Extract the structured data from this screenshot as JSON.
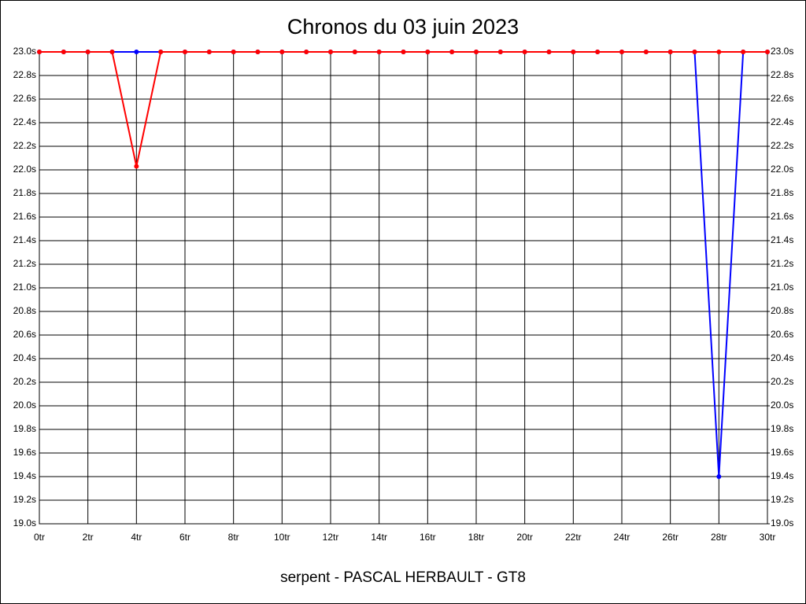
{
  "chart_data": {
    "type": "line",
    "title": "Chronos du 03 juin 2023",
    "subtitle": "serpent - PASCAL HERBAULT - GT8",
    "x": [
      0,
      1,
      2,
      3,
      4,
      5,
      6,
      7,
      8,
      9,
      10,
      11,
      12,
      13,
      14,
      15,
      16,
      17,
      18,
      19,
      20,
      21,
      22,
      23,
      24,
      25,
      26,
      27,
      28,
      29,
      30
    ],
    "series": [
      {
        "name": "rouge",
        "color": "#ff0000",
        "values": [
          23.0,
          23.0,
          23.0,
          23.0,
          22.03,
          23.0,
          23.0,
          23.0,
          23.0,
          23.0,
          23.0,
          23.0,
          23.0,
          23.0,
          23.0,
          23.0,
          23.0,
          23.0,
          23.0,
          23.0,
          23.0,
          23.0,
          23.0,
          23.0,
          23.0,
          23.0,
          23.0,
          23.0,
          23.0,
          23.0,
          23.0
        ]
      },
      {
        "name": "bleu",
        "color": "#0000ff",
        "values": [
          23.0,
          23.0,
          23.0,
          23.0,
          23.0,
          23.0,
          23.0,
          23.0,
          23.0,
          23.0,
          23.0,
          23.0,
          23.0,
          23.0,
          23.0,
          23.0,
          23.0,
          23.0,
          23.0,
          23.0,
          23.0,
          23.0,
          23.0,
          23.0,
          23.0,
          23.0,
          23.0,
          23.0,
          19.4,
          23.0,
          23.0
        ],
        "axis": "y2"
      }
    ],
    "xlim": [
      0,
      30
    ],
    "xticks": [
      {
        "value": 0,
        "label": "0tr"
      },
      {
        "value": 2,
        "label": "2tr"
      },
      {
        "value": 4,
        "label": "4tr"
      },
      {
        "value": 6,
        "label": "6tr"
      },
      {
        "value": 8,
        "label": "8tr"
      },
      {
        "value": 10,
        "label": "10tr"
      },
      {
        "value": 12,
        "label": "12tr"
      },
      {
        "value": 14,
        "label": "14tr"
      },
      {
        "value": 16,
        "label": "16tr"
      },
      {
        "value": 18,
        "label": "18tr"
      },
      {
        "value": 20,
        "label": "20tr"
      },
      {
        "value": 22,
        "label": "22tr"
      },
      {
        "value": 24,
        "label": "24tr"
      },
      {
        "value": 26,
        "label": "26tr"
      },
      {
        "value": 28,
        "label": "28tr"
      },
      {
        "value": 30,
        "label": "30tr"
      }
    ],
    "ylim": [
      19.0,
      23.0
    ],
    "yticks": [
      {
        "value": 19.0,
        "label": "19.0s"
      },
      {
        "value": 19.2,
        "label": "19.2s"
      },
      {
        "value": 19.4,
        "label": "19.4s"
      },
      {
        "value": 19.6,
        "label": "19.6s"
      },
      {
        "value": 19.8,
        "label": "19.8s"
      },
      {
        "value": 20.0,
        "label": "20.0s"
      },
      {
        "value": 20.2,
        "label": "20.2s"
      },
      {
        "value": 20.4,
        "label": "20.4s"
      },
      {
        "value": 20.6,
        "label": "20.6s"
      },
      {
        "value": 20.8,
        "label": "20.8s"
      },
      {
        "value": 21.0,
        "label": "21.0s"
      },
      {
        "value": 21.2,
        "label": "21.2s"
      },
      {
        "value": 21.4,
        "label": "21.4s"
      },
      {
        "value": 21.6,
        "label": "21.6s"
      },
      {
        "value": 21.8,
        "label": "21.8s"
      },
      {
        "value": 22.0,
        "label": "22.0s"
      },
      {
        "value": 22.2,
        "label": "22.2s"
      },
      {
        "value": 22.4,
        "label": "22.4s"
      },
      {
        "value": 22.6,
        "label": "22.6s"
      },
      {
        "value": 22.8,
        "label": "22.8s"
      },
      {
        "value": 23.0,
        "label": "23.0s"
      }
    ],
    "y2lim": [
      19.0,
      23.0
    ],
    "y2ticks": [
      {
        "value": 19.0,
        "label": "19.0s"
      },
      {
        "value": 19.2,
        "label": "19.2s"
      },
      {
        "value": 19.4,
        "label": "19.4s"
      },
      {
        "value": 19.6,
        "label": "19.6s"
      },
      {
        "value": 19.8,
        "label": "19.8s"
      },
      {
        "value": 20.0,
        "label": "20.0s"
      },
      {
        "value": 20.2,
        "label": "20.2s"
      },
      {
        "value": 20.4,
        "label": "20.4s"
      },
      {
        "value": 20.6,
        "label": "20.6s"
      },
      {
        "value": 20.8,
        "label": "20.8s"
      },
      {
        "value": 21.0,
        "label": "21.0s"
      },
      {
        "value": 21.2,
        "label": "21.2s"
      },
      {
        "value": 21.4,
        "label": "21.4s"
      },
      {
        "value": 21.6,
        "label": "21.6s"
      },
      {
        "value": 21.8,
        "label": "21.8s"
      },
      {
        "value": 22.0,
        "label": "22.0s"
      },
      {
        "value": 22.2,
        "label": "22.2s"
      },
      {
        "value": 22.4,
        "label": "22.4s"
      },
      {
        "value": 22.6,
        "label": "22.6s"
      },
      {
        "value": 22.8,
        "label": "22.8s"
      },
      {
        "value": 23.0,
        "label": "23.0s"
      }
    ],
    "grid": true
  }
}
